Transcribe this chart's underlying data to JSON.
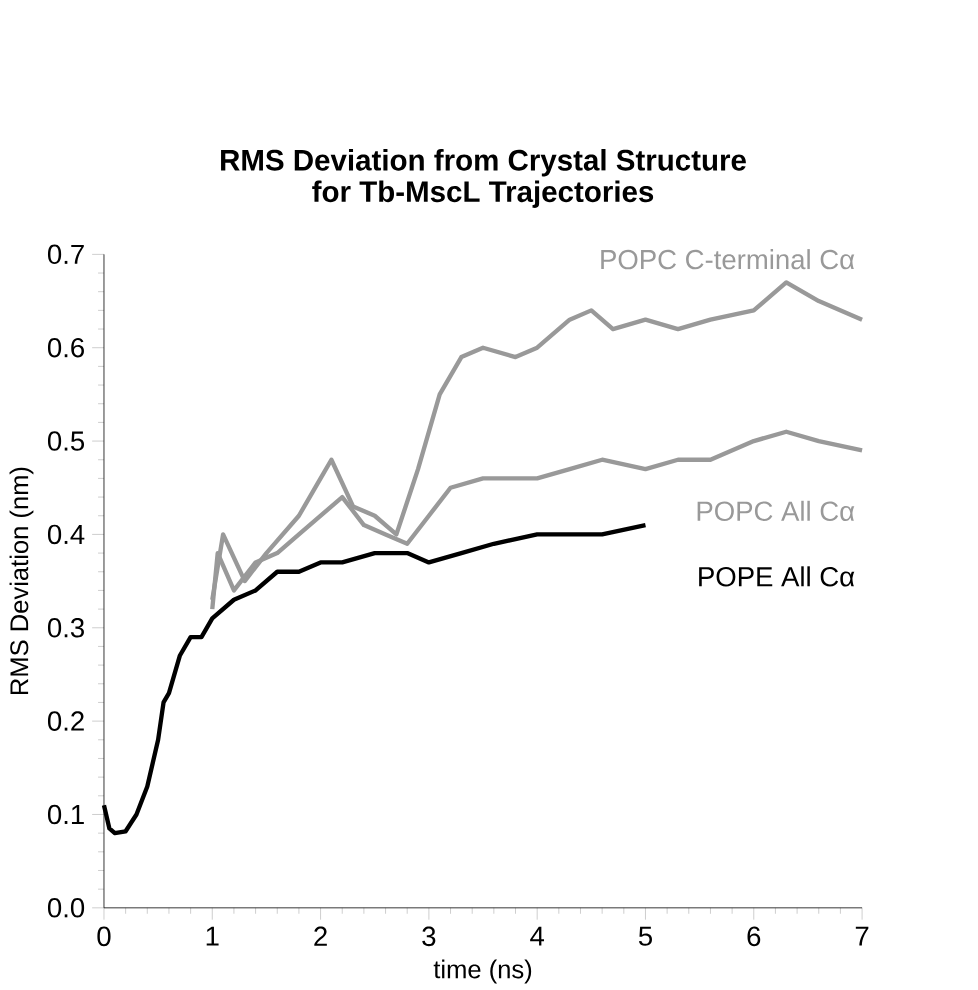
{
  "chart_data": {
    "type": "line",
    "title": "RMS Deviation from Crystal Structure\nfor Tb-MscL Trajectories",
    "xlabel": "time (ns)",
    "ylabel": "RMS Deviation (nm)",
    "xlim": [
      0,
      7
    ],
    "ylim": [
      0,
      0.7
    ],
    "xticks": [
      0,
      1,
      2,
      3,
      4,
      5,
      6,
      7
    ],
    "yticks": [
      {
        "value": 0,
        "label": "0.0"
      },
      {
        "value": 0.1,
        "label": "0.1"
      },
      {
        "value": 0.2,
        "label": "0.2"
      },
      {
        "value": 0.3,
        "label": "0.3"
      },
      {
        "value": 0.4,
        "label": "0.4"
      },
      {
        "value": 0.5,
        "label": "0.5"
      },
      {
        "value": 0.6,
        "label": "0.6"
      },
      {
        "value": 0.7,
        "label": "0.7"
      }
    ],
    "grid": false,
    "legend": false,
    "series": [
      {
        "name": "POPC C-terminal Cα",
        "color": "#999999",
        "x": [
          1.0,
          1.1,
          1.3,
          1.5,
          1.8,
          2.0,
          2.1,
          2.3,
          2.5,
          2.7,
          2.9,
          3.1,
          3.3,
          3.5,
          3.8,
          4.0,
          4.3,
          4.5,
          4.7,
          5.0,
          5.3,
          5.6,
          6.0,
          6.3,
          6.6,
          7.0
        ],
        "values": [
          0.33,
          0.4,
          0.35,
          0.38,
          0.42,
          0.46,
          0.48,
          0.43,
          0.42,
          0.4,
          0.47,
          0.55,
          0.59,
          0.6,
          0.59,
          0.6,
          0.63,
          0.64,
          0.62,
          0.63,
          0.62,
          0.63,
          0.64,
          0.67,
          0.65,
          0.63
        ]
      },
      {
        "name": "POPC All Cα",
        "color": "#999999",
        "x": [
          1.0,
          1.05,
          1.2,
          1.4,
          1.6,
          1.8,
          2.0,
          2.2,
          2.4,
          2.6,
          2.8,
          3.0,
          3.2,
          3.5,
          3.8,
          4.0,
          4.3,
          4.6,
          5.0,
          5.3,
          5.6,
          6.0,
          6.3,
          6.6,
          7.0
        ],
        "values": [
          0.32,
          0.38,
          0.34,
          0.37,
          0.38,
          0.4,
          0.42,
          0.44,
          0.41,
          0.4,
          0.39,
          0.42,
          0.45,
          0.46,
          0.46,
          0.46,
          0.47,
          0.48,
          0.47,
          0.48,
          0.48,
          0.5,
          0.51,
          0.5,
          0.49
        ]
      },
      {
        "name": "POPE All Cα",
        "color": "#000000",
        "x": [
          0,
          0.05,
          0.1,
          0.2,
          0.3,
          0.4,
          0.5,
          0.55,
          0.6,
          0.7,
          0.8,
          0.9,
          1.0,
          1.2,
          1.4,
          1.6,
          1.8,
          2.0,
          2.2,
          2.5,
          2.8,
          3.0,
          3.3,
          3.6,
          4.0,
          4.3,
          4.6,
          5.0
        ],
        "values": [
          0.11,
          0.085,
          0.08,
          0.082,
          0.1,
          0.13,
          0.18,
          0.22,
          0.23,
          0.27,
          0.29,
          0.29,
          0.31,
          0.33,
          0.34,
          0.36,
          0.36,
          0.37,
          0.37,
          0.38,
          0.38,
          0.37,
          0.38,
          0.39,
          0.4,
          0.4,
          0.4,
          0.41
        ]
      }
    ]
  }
}
